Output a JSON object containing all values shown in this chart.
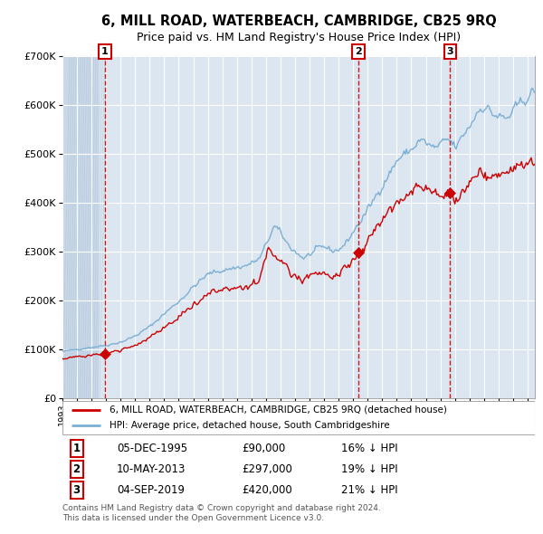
{
  "title": "6, MILL ROAD, WATERBEACH, CAMBRIDGE, CB25 9RQ",
  "subtitle": "Price paid vs. HM Land Registry's House Price Index (HPI)",
  "sale_years_float": [
    1995.917,
    2013.367,
    2019.671
  ],
  "sale_prices": [
    90000,
    297000,
    420000
  ],
  "sale_labels": [
    "1",
    "2",
    "3"
  ],
  "sale_notes": [
    "16% ↓ HPI",
    "19% ↓ HPI",
    "21% ↓ HPI"
  ],
  "sale_dates_str": [
    "05-DEC-1995",
    "10-MAY-2013",
    "04-SEP-2019"
  ],
  "sale_prices_str": [
    "£90,000",
    "£297,000",
    "£420,000"
  ],
  "legend_line1": "6, MILL ROAD, WATERBEACH, CAMBRIDGE, CB25 9RQ (detached house)",
  "legend_line2": "HPI: Average price, detached house, South Cambridgeshire",
  "footer": "Contains HM Land Registry data © Crown copyright and database right 2024.\nThis data is licensed under the Open Government Licence v3.0.",
  "line_color_red": "#cc0000",
  "line_color_blue": "#7bafd4",
  "background_color": "#dce6f1",
  "grid_color": "#ffffff",
  "ylim": [
    0,
    700000
  ],
  "yticks": [
    0,
    100000,
    200000,
    300000,
    400000,
    500000,
    600000,
    700000
  ],
  "xlim_min": 1993.0,
  "xlim_max": 2025.5,
  "hpi_key_points": [
    [
      1993.0,
      95000
    ],
    [
      1994.0,
      100000
    ],
    [
      1995.0,
      104000
    ],
    [
      1996.0,
      108000
    ],
    [
      1997.0,
      115000
    ],
    [
      1998.0,
      128000
    ],
    [
      1999.0,
      148000
    ],
    [
      2000.0,
      175000
    ],
    [
      2001.0,
      200000
    ],
    [
      2002.0,
      230000
    ],
    [
      2003.0,
      255000
    ],
    [
      2004.5,
      265000
    ],
    [
      2005.5,
      270000
    ],
    [
      2006.5,
      285000
    ],
    [
      2007.5,
      355000
    ],
    [
      2008.5,
      310000
    ],
    [
      2009.5,
      285000
    ],
    [
      2010.5,
      305000
    ],
    [
      2011.0,
      310000
    ],
    [
      2011.5,
      300000
    ],
    [
      2012.0,
      305000
    ],
    [
      2012.5,
      320000
    ],
    [
      2013.0,
      345000
    ],
    [
      2013.5,
      365000
    ],
    [
      2014.0,
      390000
    ],
    [
      2015.0,
      440000
    ],
    [
      2016.0,
      490000
    ],
    [
      2017.0,
      510000
    ],
    [
      2017.5,
      530000
    ],
    [
      2018.0,
      520000
    ],
    [
      2018.5,
      510000
    ],
    [
      2019.0,
      520000
    ],
    [
      2019.5,
      530000
    ],
    [
      2020.0,
      510000
    ],
    [
      2020.5,
      540000
    ],
    [
      2021.0,
      560000
    ],
    [
      2021.5,
      590000
    ],
    [
      2022.0,
      600000
    ],
    [
      2022.5,
      580000
    ],
    [
      2023.0,
      575000
    ],
    [
      2023.5,
      570000
    ],
    [
      2024.0,
      590000
    ],
    [
      2024.5,
      605000
    ],
    [
      2025.0,
      620000
    ],
    [
      2025.5,
      630000
    ]
  ],
  "price_key_points": [
    [
      1993.0,
      80000
    ],
    [
      1994.0,
      84000
    ],
    [
      1995.0,
      87000
    ],
    [
      1995.917,
      90000
    ],
    [
      1997.0,
      97000
    ],
    [
      1998.0,
      108000
    ],
    [
      1999.0,
      125000
    ],
    [
      2000.0,
      145000
    ],
    [
      2001.0,
      165000
    ],
    [
      2002.0,
      192000
    ],
    [
      2003.0,
      215000
    ],
    [
      2004.5,
      225000
    ],
    [
      2005.5,
      228000
    ],
    [
      2006.5,
      242000
    ],
    [
      2007.0,
      302000
    ],
    [
      2007.5,
      295000
    ],
    [
      2008.5,
      260000
    ],
    [
      2009.5,
      240000
    ],
    [
      2010.5,
      255000
    ],
    [
      2011.0,
      260000
    ],
    [
      2011.5,
      250000
    ],
    [
      2012.0,
      255000
    ],
    [
      2012.5,
      268000
    ],
    [
      2013.0,
      285000
    ],
    [
      2013.367,
      297000
    ],
    [
      2013.5,
      295000
    ],
    [
      2014.0,
      325000
    ],
    [
      2015.0,
      367000
    ],
    [
      2016.0,
      400000
    ],
    [
      2017.0,
      420000
    ],
    [
      2017.5,
      435000
    ],
    [
      2018.0,
      425000
    ],
    [
      2018.5,
      415000
    ],
    [
      2019.0,
      420000
    ],
    [
      2019.671,
      420000
    ],
    [
      2020.0,
      400000
    ],
    [
      2020.5,
      420000
    ],
    [
      2021.0,
      440000
    ],
    [
      2021.5,
      455000
    ],
    [
      2022.0,
      460000
    ],
    [
      2022.5,
      450000
    ],
    [
      2023.0,
      450000
    ],
    [
      2023.5,
      455000
    ],
    [
      2024.0,
      470000
    ],
    [
      2024.5,
      475000
    ],
    [
      2025.0,
      480000
    ],
    [
      2025.5,
      485000
    ]
  ]
}
